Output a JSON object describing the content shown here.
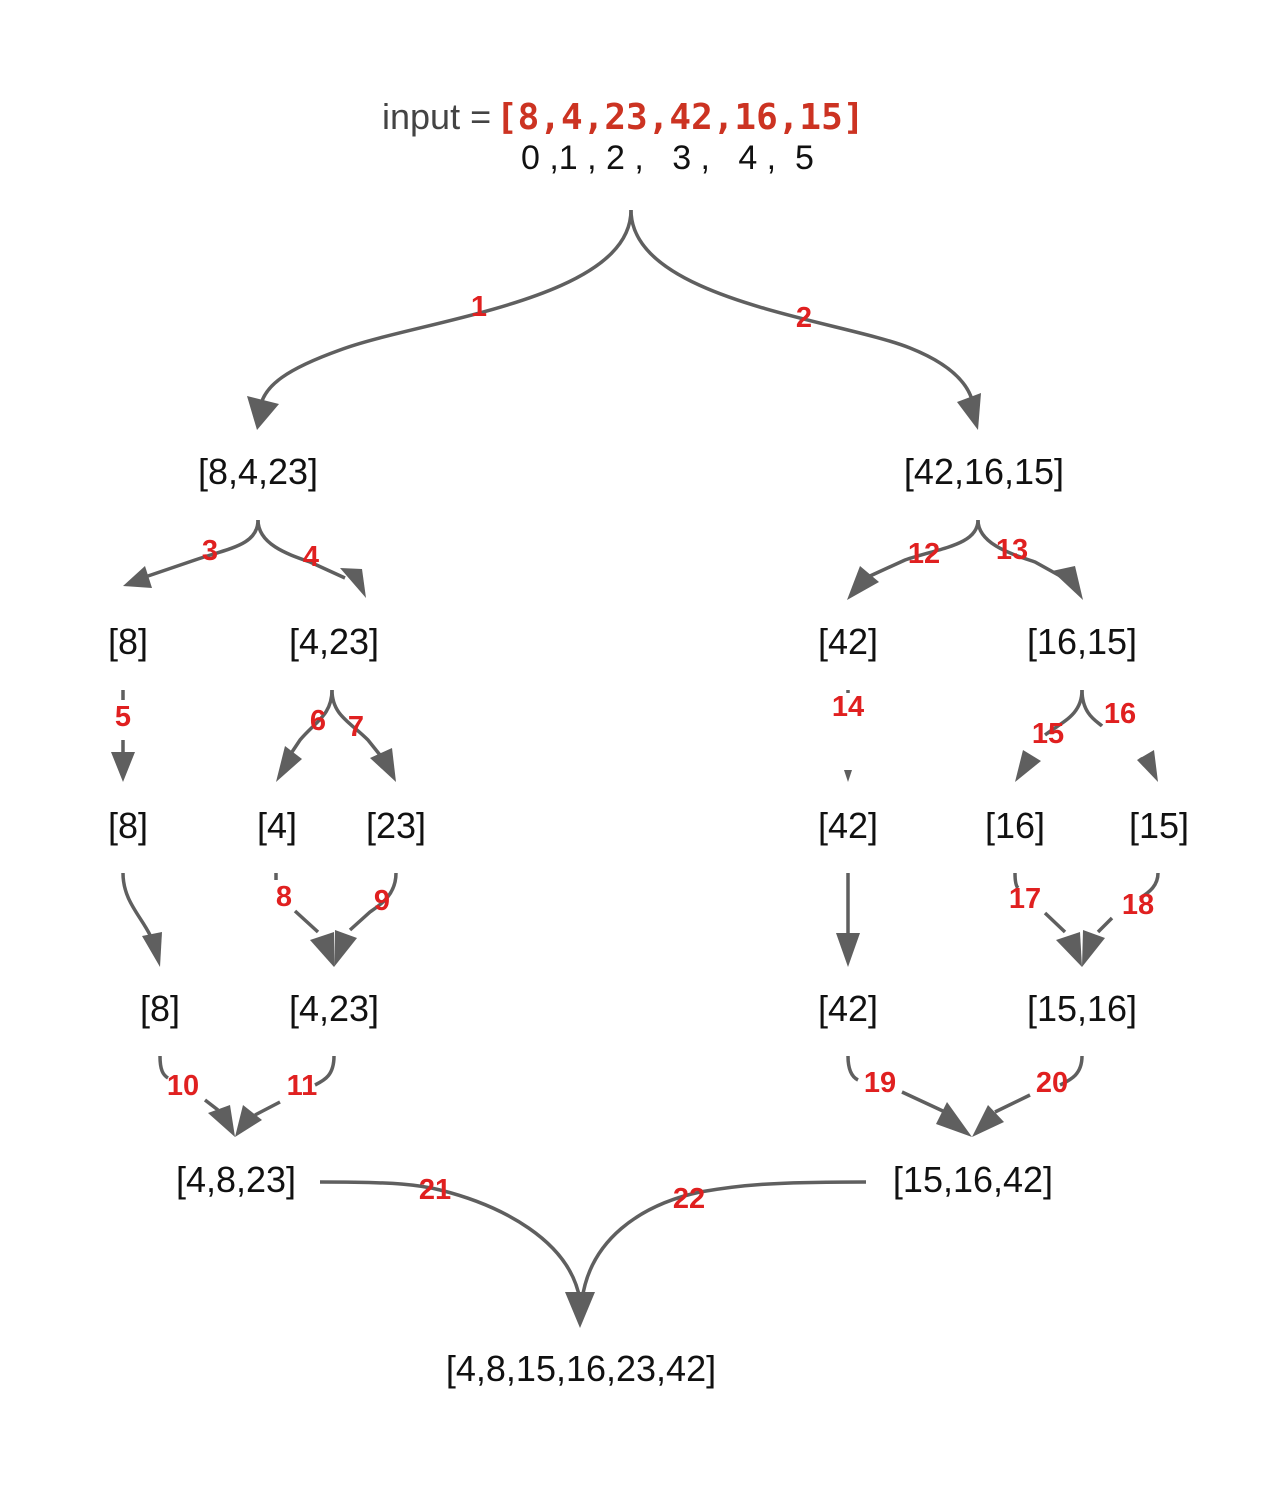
{
  "input": {
    "label": "input =",
    "array": "[8,4,23,42,16,15]",
    "indices": "0 ,1 , 2 ,   3 ,   4 ,  5"
  },
  "nodes": {
    "left_half": "[8,4,23]",
    "right_half": "[42,16,15]",
    "l_8": "[8]",
    "l_4_23": "[4,23]",
    "r_42": "[42]",
    "r_16_15": "[16,15]",
    "l_8_b": "[8]",
    "l_4": "[4]",
    "l_23": "[23]",
    "r_42_b": "[42]",
    "r_16": "[16]",
    "r_15": "[15]",
    "l_8_c": "[8]",
    "l_4_23_merged": "[4,23]",
    "r_42_c": "[42]",
    "r_15_16_merged": "[15,16]",
    "left_merged": "[4,8,23]",
    "right_merged": "[15,16,42]",
    "result": "[4,8,15,16,23,42]"
  },
  "steps": {
    "s1": "1",
    "s2": "2",
    "s3": "3",
    "s4": "4",
    "s5": "5",
    "s6": "6",
    "s7": "7",
    "s8": "8",
    "s9": "9",
    "s10": "10",
    "s11": "11",
    "s12": "12",
    "s13": "13",
    "s14": "14",
    "s15": "15",
    "s16": "16",
    "s17": "17",
    "s18": "18",
    "s19": "19",
    "s20": "20",
    "s21": "21",
    "s22": "22"
  },
  "colors": {
    "edge": "#5f5f5f",
    "step_label": "#e02020",
    "input_array": "#cc3322",
    "node_text": "#111111"
  }
}
